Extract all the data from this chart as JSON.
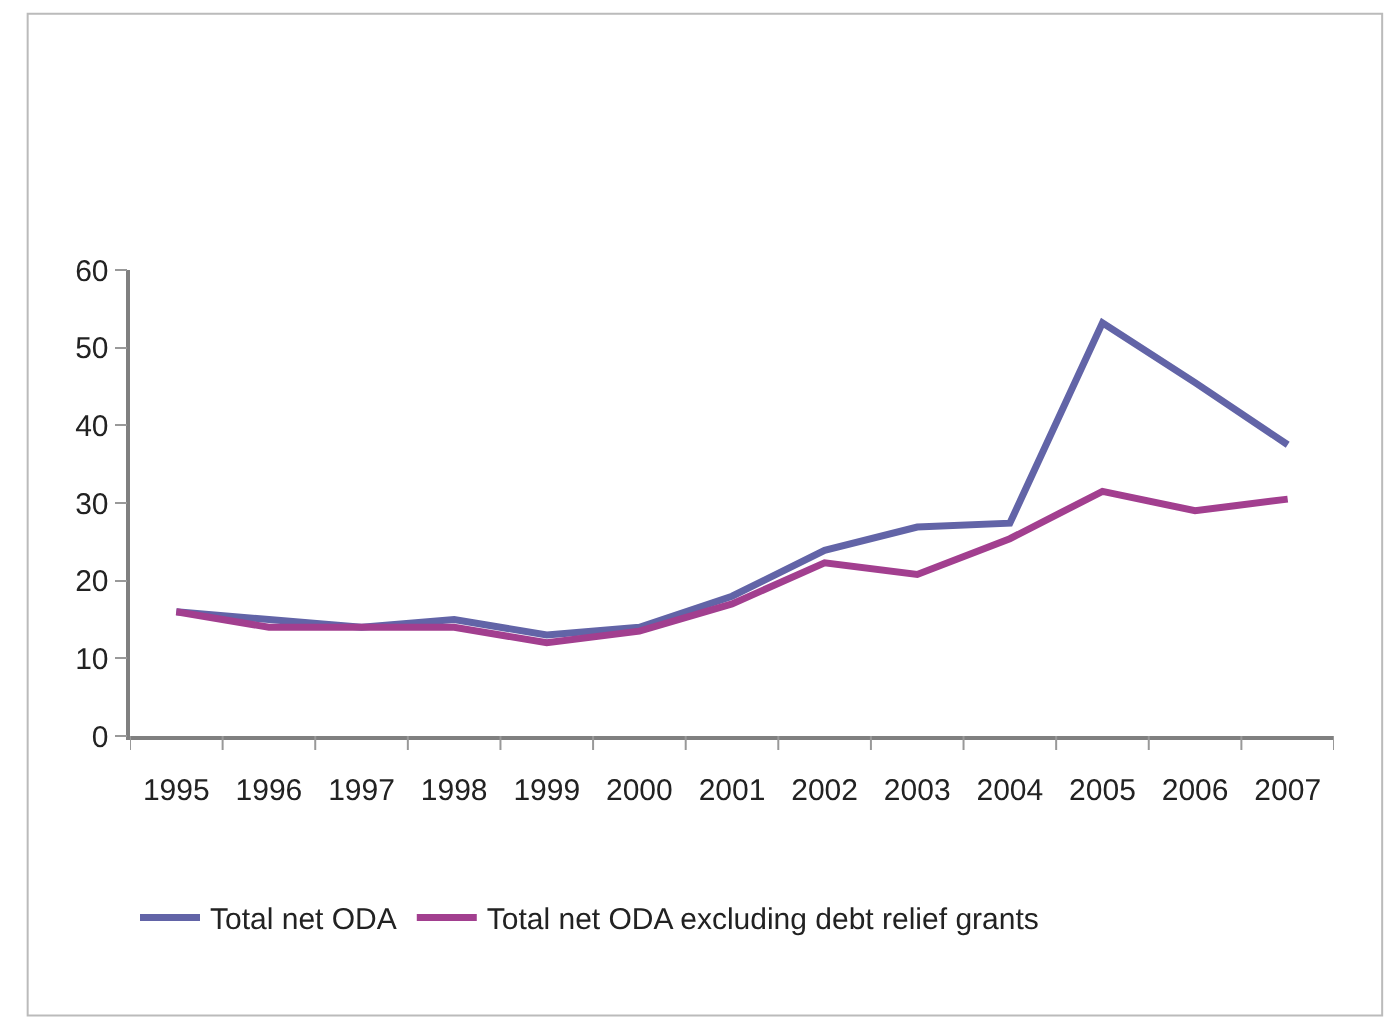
{
  "chart_data": {
    "type": "line",
    "categories": [
      "1995",
      "1996",
      "1997",
      "1998",
      "1999",
      "2000",
      "2001",
      "2002",
      "2003",
      "2004",
      "2005",
      "2006",
      "2007"
    ],
    "series": [
      {
        "name": "Total net ODA",
        "color": "#6264a7",
        "values": [
          16,
          15,
          14,
          15,
          13,
          14,
          18,
          23.9,
          26.9,
          27.4,
          53.2,
          45.5,
          37.5
        ]
      },
      {
        "name": "Total net ODA excluding debt relief grants",
        "color": "#a23f8f",
        "values": [
          16,
          14,
          14,
          14,
          12,
          13.5,
          17,
          22.3,
          20.8,
          25.4,
          31.5,
          29,
          30.5
        ]
      }
    ],
    "ylim": [
      0,
      60
    ],
    "yticks": [
      0,
      10,
      20,
      30,
      40,
      50,
      60
    ],
    "grid": false,
    "legend": "bottom",
    "marker": "none",
    "line_style": "solid"
  }
}
